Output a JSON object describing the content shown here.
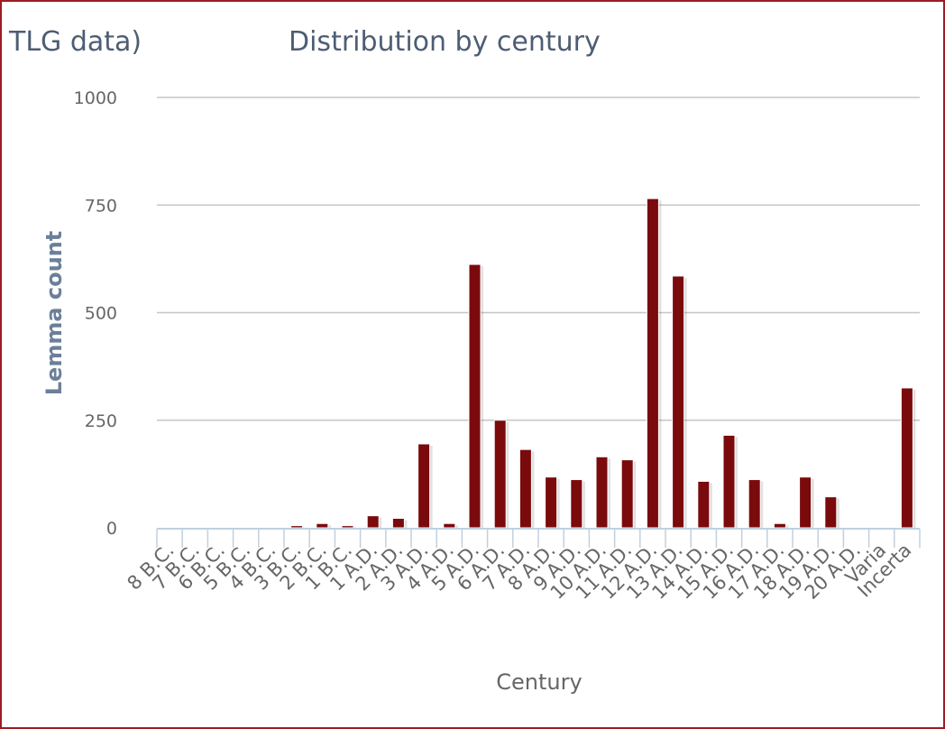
{
  "chart_data": {
    "type": "bar",
    "title": "Distribution by century",
    "title_prefix_fragment": "TLG data)",
    "xlabel": "Century",
    "ylabel": "Lemma count",
    "ylim": [
      0,
      1000
    ],
    "yticks": [
      0,
      250,
      500,
      750,
      1000
    ],
    "grid": true,
    "legend": "none",
    "categories": [
      "8 B.C.",
      "7 B.C.",
      "6 B.C.",
      "5 B.C.",
      "4 B.C.",
      "3 B.C.",
      "2 B.C.",
      "1 B.C.",
      "1 A.D.",
      "2 A.D.",
      "3 A.D.",
      "4 A.D.",
      "5 A.D.",
      "6 A.D.",
      "7 A.D.",
      "8 A.D.",
      "9 A.D.",
      "10 A.D.",
      "11 A.D.",
      "12 A.D.",
      "13 A.D.",
      "14 A.D.",
      "15 A.D.",
      "16 A.D.",
      "17 A.D.",
      "18 A.D.",
      "19 A.D.",
      "20 A.D.",
      "Varia",
      "Incerta"
    ],
    "series": [
      {
        "values": [
          0,
          0,
          0,
          0,
          2,
          5,
          10,
          5,
          28,
          22,
          195,
          10,
          612,
          250,
          182,
          118,
          112,
          165,
          158,
          765,
          585,
          108,
          215,
          112,
          10,
          118,
          72,
          0,
          0,
          325
        ]
      }
    ],
    "colors": {
      "bar": "#7a0a0c",
      "grid": "#c6c6c6",
      "axis": "#c0d0e0"
    }
  }
}
